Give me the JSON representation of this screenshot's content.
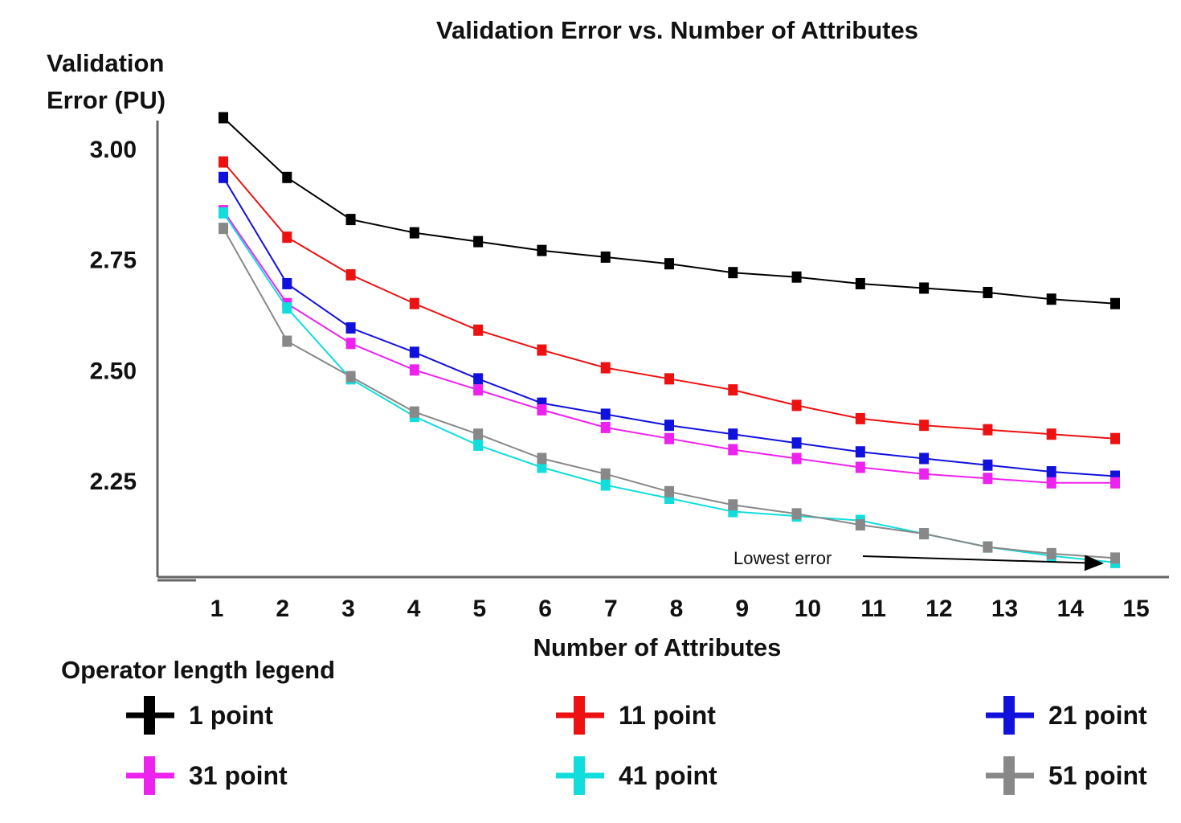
{
  "chart_data": {
    "type": "line",
    "title": "Validation Error vs. Number of Attributes",
    "ylabel_line1": "Validation",
    "ylabel_line2": "Error (PU)",
    "xlabel": "Number of Attributes",
    "x": [
      1,
      2,
      3,
      4,
      5,
      6,
      7,
      8,
      9,
      10,
      11,
      12,
      13,
      14,
      15
    ],
    "yticks": [
      "3.00",
      "2.75",
      "2.50",
      "2.25"
    ],
    "ytick_values": [
      3.0,
      2.75,
      2.5,
      2.25
    ],
    "ylim": [
      2.04,
      3.05
    ],
    "grid": false,
    "annotation": {
      "text": "Lowest error",
      "x": 15,
      "y": 2.065
    },
    "legend_title": "Operator length legend",
    "series": [
      {
        "name": "1 point",
        "color": "#000000",
        "values": [
          3.07,
          2.935,
          2.84,
          2.81,
          2.79,
          2.77,
          2.755,
          2.74,
          2.72,
          2.71,
          2.695,
          2.685,
          2.675,
          2.66,
          2.65
        ]
      },
      {
        "name": "11 point",
        "color": "#ee1111",
        "values": [
          2.97,
          2.8,
          2.715,
          2.65,
          2.59,
          2.545,
          2.505,
          2.48,
          2.455,
          2.42,
          2.39,
          2.375,
          2.365,
          2.355,
          2.345
        ]
      },
      {
        "name": "21 point",
        "color": "#1111dd",
        "values": [
          2.935,
          2.695,
          2.595,
          2.54,
          2.48,
          2.425,
          2.4,
          2.375,
          2.355,
          2.335,
          2.315,
          2.3,
          2.285,
          2.27,
          2.26
        ]
      },
      {
        "name": "31 point",
        "color": "#ee22ee",
        "values": [
          2.86,
          2.65,
          2.56,
          2.5,
          2.455,
          2.41,
          2.37,
          2.345,
          2.32,
          2.3,
          2.28,
          2.265,
          2.255,
          2.245,
          2.245
        ]
      },
      {
        "name": "41 point",
        "color": "#11dddd",
        "values": [
          2.855,
          2.64,
          2.48,
          2.395,
          2.33,
          2.28,
          2.24,
          2.21,
          2.18,
          2.17,
          2.16,
          2.13,
          2.1,
          2.08,
          2.065
        ]
      },
      {
        "name": "51 point",
        "color": "#888888",
        "values": [
          2.82,
          2.565,
          2.485,
          2.405,
          2.355,
          2.3,
          2.265,
          2.225,
          2.195,
          2.175,
          2.15,
          2.13,
          2.1,
          2.085,
          2.075
        ]
      }
    ]
  }
}
